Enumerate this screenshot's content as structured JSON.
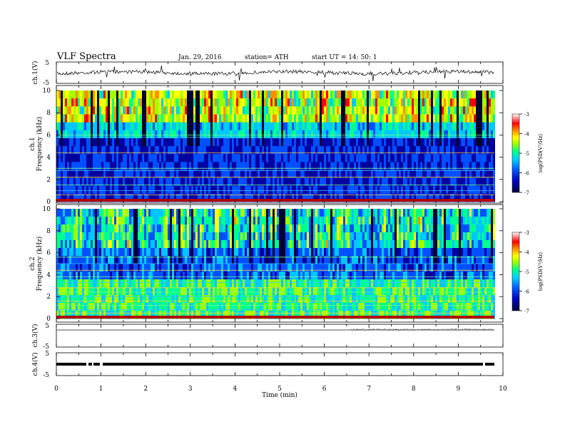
{
  "header": {
    "title": "VLF  Spectra",
    "date": "Jan.  29,  2016",
    "station": "station= ATH",
    "start": "start  UT  =    14: 50: 1"
  },
  "ch1": {
    "ylabel": "ch.1(V)",
    "ticks": [
      "5",
      "-5"
    ]
  },
  "spec1": {
    "ylabel": "ch.1\nFrequency  (kHz)",
    "ylabel_line1": "ch.1",
    "ylabel_line2": "Frequency  (kHz)",
    "yticks": [
      "10",
      "8",
      "6",
      "4",
      "2",
      "0"
    ]
  },
  "spec2": {
    "ylabel_line1": "ch.2",
    "ylabel_line2": "Frequency  (kHz)",
    "yticks": [
      "10",
      "8",
      "6",
      "4",
      "2",
      "0"
    ]
  },
  "ch3": {
    "ylabel": "ch.3(V)",
    "ticks": [
      "5",
      "-5"
    ]
  },
  "ch4": {
    "ylabel": "ch.4(V)",
    "ticks": [
      "5",
      "-5"
    ]
  },
  "colorbar1": {
    "label": "log(PSD(V²/Hz)",
    "ticks": [
      "-3",
      "-4",
      "-5",
      "-6",
      "-7"
    ]
  },
  "colorbar2": {
    "label": "log(PSD(V²/Hz)",
    "ticks": [
      "-3",
      "-4",
      "-5",
      "-6",
      "-7"
    ]
  },
  "xaxis": {
    "label": "Time  (min)",
    "ticks": [
      "0",
      "1",
      "2",
      "3",
      "4",
      "5",
      "6",
      "7",
      "8",
      "9",
      "10"
    ]
  },
  "colors": {
    "colormap": [
      "#000033",
      "#0000a0",
      "#0050ff",
      "#00c8ff",
      "#00ff90",
      "#a0ff00",
      "#ffff00",
      "#ff9000",
      "#ff0000",
      "#ffffff"
    ]
  },
  "chart_data": [
    {
      "type": "line",
      "title": "VLF  Spectra",
      "ylabel": "ch.1(V)",
      "xlabel": "Time  (min)",
      "xlim": [
        0,
        10
      ],
      "ylim": [
        -5,
        5
      ],
      "description_values": {
        "baseline": -0.3
      }
    },
    {
      "type": "heatmap",
      "ylabel": "Frequency  (kHz)",
      "xlabel": "Time  (min)",
      "xlim": [
        0,
        10
      ],
      "ylim": [
        0,
        10
      ],
      "colorbar": {
        "label": "log(PSD(V²/Hz)",
        "range": [
          -7,
          -3
        ]
      }
    },
    {
      "type": "heatmap",
      "ylabel": "Frequency  (kHz)",
      "xlabel": "Time  (min)",
      "xlim": [
        0,
        10
      ],
      "ylim": [
        0,
        10
      ],
      "colorbar": {
        "label": "log(PSD(V²/Hz)",
        "range": [
          -7,
          -3
        ]
      }
    },
    {
      "type": "line",
      "ylabel": "ch.3(V)",
      "xlim": [
        0,
        10
      ],
      "ylim": [
        -5,
        5
      ],
      "description_values": {
        "baseline": 0
      }
    },
    {
      "type": "line",
      "ylabel": "ch.4(V)",
      "xlim": [
        0,
        10
      ],
      "ylim": [
        -5,
        5
      ],
      "description_values": {
        "baseline": 0
      }
    }
  ]
}
